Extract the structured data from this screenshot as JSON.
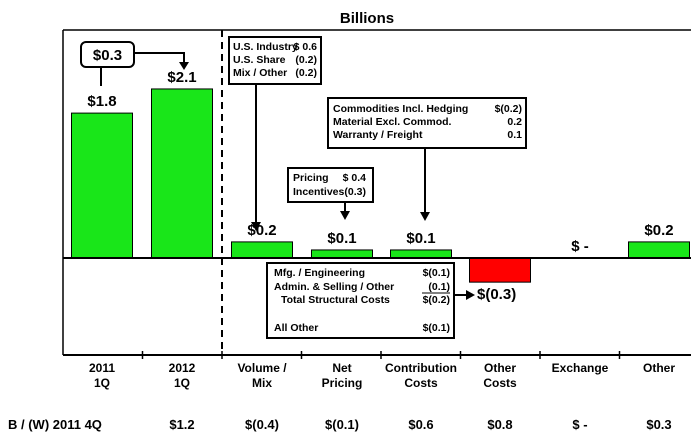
{
  "chart_data": {
    "type": "bar",
    "title": "Billions",
    "categories": [
      [
        "2011",
        "1Q"
      ],
      [
        "2012",
        "1Q"
      ],
      [
        "Volume /",
        "Mix"
      ],
      [
        "Net",
        "Pricing"
      ],
      [
        "Contribution",
        "Costs"
      ],
      [
        "Other",
        "Costs"
      ],
      [
        "Exchange"
      ],
      [
        "Other"
      ]
    ],
    "values": [
      1.8,
      2.1,
      0.2,
      0.1,
      0.1,
      -0.3,
      0,
      0.2
    ],
    "value_labels": [
      "$1.8",
      "$2.1",
      "$0.2",
      "$0.1",
      "$0.1",
      "$(0.3)",
      "$ -",
      "$0.2"
    ],
    "bar_colors": [
      "#19e619",
      "#19e619",
      "#19e619",
      "#19e619",
      "#19e619",
      "#ff0000",
      "#19e619",
      "#19e619"
    ],
    "grid": false,
    "bridge_label": "$0.3",
    "row_label": "B / (W) 2011 4Q",
    "row_values": [
      "$1.2",
      "$(0.4)",
      "$(0.1)",
      "$0.6",
      "$0.8",
      "$ -",
      "$0.3"
    ],
    "detail_boxes": {
      "volume": [
        [
          "U.S. Industry",
          "$ 0.6"
        ],
        [
          "U.S. Share",
          "(0.2)"
        ],
        [
          "Mix / Other",
          "(0.2)"
        ]
      ],
      "pricing": [
        [
          "Pricing",
          "$ 0.4"
        ],
        [
          "Incentives",
          "(0.3)"
        ]
      ],
      "contribution": [
        [
          "Commodities Incl. Hedging",
          "$(0.2)"
        ],
        [
          "Material Excl. Commod.",
          "0.2"
        ],
        [
          "Warranty / Freight",
          "0.1"
        ]
      ],
      "other_costs": [
        [
          "Mfg. / Engineering",
          "$(0.1)"
        ],
        [
          "Admin. & Selling / Other",
          "(0.1)"
        ],
        [
          "Total Structural Costs",
          "$(0.2)"
        ],
        [
          "All Other",
          "$(0.1)"
        ]
      ]
    }
  }
}
